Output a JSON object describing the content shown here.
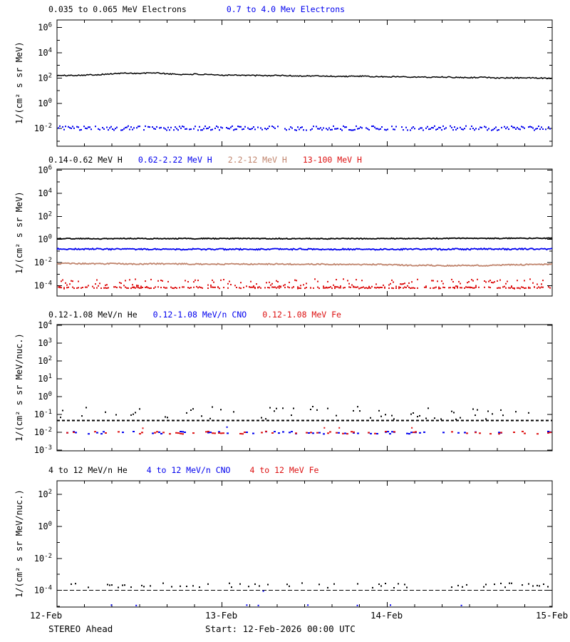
{
  "page": {
    "background": "#ffffff"
  },
  "x_axis": {
    "labels": [
      "12-Feb",
      "13-Feb",
      "14-Feb",
      "15-Feb"
    ],
    "minor_ticks_per_day": 6
  },
  "footer": {
    "left": "STEREO Ahead",
    "center": "Start: 12-Feb-2026 00:00 UTC"
  },
  "colors": {
    "black": "#000000",
    "blue": "#0000EE",
    "tan": "#C0846C",
    "red": "#DD1111"
  },
  "chart_data": [
    {
      "type": "line+scatter",
      "title_segments": [
        {
          "label": "0.035 to 0.065 MeV Electrons",
          "color": "#000000"
        },
        {
          "label": "0.7 to 4.0 Mev Electrons",
          "color": "#0000EE"
        }
      ],
      "ylabel": "1/(cm² s sr MeV)",
      "xlabel": "",
      "x_range_days": [
        0,
        3
      ],
      "ylog_range": [
        -3.4,
        6.6
      ],
      "yticks_labeled": [
        6,
        4,
        2,
        0,
        -2
      ],
      "yticks_minor": [
        5,
        3,
        1,
        -1,
        -3
      ],
      "series": [
        {
          "name": "0.035 to 0.065 MeV Electrons",
          "color": "#000000",
          "style": "noisy_line",
          "width": 1.5,
          "jitter": 0.045,
          "seed": 101,
          "log_values": [
            2.19,
            2.21,
            2.24,
            2.27,
            2.33,
            2.4,
            2.36,
            2.42,
            2.34,
            2.28,
            2.31,
            2.26,
            2.23,
            2.25,
            2.21,
            2.19,
            2.21,
            2.18,
            2.16,
            2.17,
            2.14,
            2.13,
            2.15,
            2.11,
            2.1,
            2.12,
            2.08,
            2.07,
            2.09,
            2.05,
            2.04,
            2.06,
            2.02,
            2.01,
            2.02,
            2.0,
            1.99
          ]
        },
        {
          "name": "0.7 to 4.0 Mev Electrons",
          "color": "#0000EE",
          "style": "scatter_band",
          "log_base": -1.97,
          "jitter": 0.17,
          "density": 0.8,
          "step": 2,
          "w": 2,
          "h": 2,
          "seed": 102
        }
      ]
    },
    {
      "type": "line+scatter",
      "title_segments": [
        {
          "label": "0.14-0.62 MeV H",
          "color": "#000000"
        },
        {
          "label": "0.62-2.22 MeV H",
          "color": "#0000EE"
        },
        {
          "label": "2.2-12 MeV H",
          "color": "#C0846C"
        },
        {
          "label": "13-100 MeV H",
          "color": "#DD1111"
        }
      ],
      "ylabel": "1/(cm² s sr MeV)",
      "xlabel": "",
      "x_range_days": [
        0,
        3
      ],
      "ylog_range": [
        -4.9,
        6.1
      ],
      "yticks_labeled": [
        6,
        4,
        2,
        0,
        -2,
        -4
      ],
      "yticks_minor": [
        5,
        3,
        1,
        -1,
        -3
      ],
      "series": [
        {
          "name": "0.14-0.62 MeV H",
          "color": "#000000",
          "style": "noisy_line",
          "width": 1.8,
          "jitter": 0.04,
          "seed": 201,
          "log_values": [
            0.08,
            0.07,
            0.08,
            0.06,
            0.07,
            0.09,
            0.08,
            0.07,
            0.06,
            0.08,
            0.07,
            0.08,
            0.07,
            0.09,
            0.08,
            0.07,
            0.08,
            0.07,
            0.08,
            0.06,
            0.07,
            0.08,
            0.07,
            0.08,
            0.09,
            0.08,
            0.07,
            0.08,
            0.09,
            0.1,
            0.09,
            0.1,
            0.09,
            0.11,
            0.1,
            0.11,
            0.1
          ]
        },
        {
          "name": "0.62-2.22 MeV H",
          "color": "#0000EE",
          "style": "noisy_line",
          "width": 1.8,
          "jitter": 0.06,
          "seed": 202,
          "log_values": [
            -0.82,
            -0.83,
            -0.84,
            -0.82,
            -0.85,
            -0.83,
            -0.86,
            -0.84,
            -0.83,
            -0.85,
            -0.84,
            -0.86,
            -0.85,
            -0.84,
            -0.86,
            -0.85,
            -0.84,
            -0.85,
            -0.83,
            -0.86,
            -0.85,
            -0.84,
            -0.85,
            -0.86,
            -0.84,
            -0.85,
            -0.83,
            -0.84,
            -0.85,
            -0.83,
            -0.84,
            -0.82,
            -0.83,
            -0.84,
            -0.82,
            -0.83,
            -0.82
          ]
        },
        {
          "name": "2.2-12 MeV H",
          "color": "#C0846C",
          "style": "noisy_line",
          "width": 1.8,
          "jitter": 0.05,
          "seed": 203,
          "log_values": [
            -2.1,
            -2.08,
            -2.1,
            -2.12,
            -2.1,
            -2.11,
            -2.13,
            -2.1,
            -2.12,
            -2.11,
            -2.13,
            -2.12,
            -2.14,
            -2.12,
            -2.13,
            -2.15,
            -2.13,
            -2.14,
            -2.16,
            -2.14,
            -2.15,
            -2.17,
            -2.18,
            -2.16,
            -2.18,
            -2.22,
            -2.26,
            -2.24,
            -2.28,
            -2.26,
            -2.24,
            -2.26,
            -2.22,
            -2.2,
            -2.18,
            -2.16,
            -2.15
          ]
        },
        {
          "name": "13-100 MeV H",
          "color": "#DD1111",
          "style": "scatter_band",
          "log_base": -3.85,
          "jitter": 0.42,
          "density": 0.5,
          "step": 2,
          "w": 2,
          "h": 2,
          "seed": 204
        },
        {
          "name": "13-100 MeV H",
          "color": "#DD1111",
          "style": "scatter_band",
          "log_base": -4.17,
          "jitter": 0.06,
          "density": 0.6,
          "step": 2,
          "w": 2,
          "h": 2,
          "seed": 205
        }
      ]
    },
    {
      "type": "scatter",
      "title_segments": [
        {
          "label": "0.12-1.08 MeV/n He",
          "color": "#000000"
        },
        {
          "label": "0.12-1.08 MeV/n CNO",
          "color": "#0000EE"
        },
        {
          "label": "0.12-1.08 MeV Fe",
          "color": "#DD1111"
        }
      ],
      "ylabel": "1/(cm² s sr MeV/nuc.)",
      "xlabel": "",
      "x_range_days": [
        0,
        3
      ],
      "ylog_range": [
        -3.05,
        4.05
      ],
      "yticks_labeled": [
        4,
        3,
        2,
        1,
        0,
        -1,
        -2,
        -3
      ],
      "yticks_minor": [],
      "series": [
        {
          "name": "0.12-1.08 MeV/n He",
          "color": "#000000",
          "style": "dash_hline",
          "log_value": -1.34,
          "dash": [
            4,
            3
          ],
          "width": 2
        },
        {
          "name": "0.12-1.08 MeV/n He",
          "color": "#000000",
          "style": "scatter_band",
          "log_base": -0.92,
          "jitter": 0.36,
          "density": 0.3,
          "step": 3,
          "w": 2,
          "h": 2,
          "seed": 302
        },
        {
          "name": "0.12-1.08 MeV/n CNO",
          "color": "#0000EE",
          "style": "scatter_band",
          "log_base": -2.03,
          "jitter": 0.07,
          "density": 0.25,
          "step": 3,
          "w": 3,
          "h": 2,
          "seed": 303
        },
        {
          "name": "0.12-1.08 MeV Fe",
          "color": "#DD1111",
          "style": "scatter_band",
          "log_base": -2.03,
          "jitter": 0.07,
          "density": 0.22,
          "step": 3,
          "w": 3,
          "h": 2,
          "seed": 304
        },
        {
          "name": "0.12-1.08 MeV Fe",
          "color": "#DD1111",
          "style": "points",
          "w": 2,
          "h": 2,
          "points": [
            [
              0.52,
              -1.78
            ],
            [
              1.62,
              -1.76
            ],
            [
              1.71,
              -1.76
            ],
            [
              2.15,
              -1.76
            ]
          ]
        },
        {
          "name": "0.12-1.08 MeV/n CNO",
          "color": "#0000EE",
          "style": "points",
          "w": 2,
          "h": 2,
          "points": [
            [
              1.03,
              -1.72
            ]
          ]
        }
      ]
    },
    {
      "type": "scatter",
      "title_segments": [
        {
          "label": "4 to 12 MeV/n He",
          "color": "#000000"
        },
        {
          "label": "4 to 12 MeV/n CNO",
          "color": "#0000EE"
        },
        {
          "label": "4 to 12 MeV Fe",
          "color": "#DD1111"
        }
      ],
      "ylabel": "1/(cm² s sr MeV/nuc.)",
      "xlabel": "",
      "x_range_days": [
        0,
        3
      ],
      "ylog_range": [
        -5.05,
        2.86
      ],
      "yticks_labeled": [
        2,
        0,
        -2,
        -4
      ],
      "yticks_minor": [
        1,
        -1,
        -3,
        -5
      ],
      "series": [
        {
          "name": "4 to 12 MeV/n He",
          "color": "#000000",
          "style": "dash_hline",
          "log_value": -4.0,
          "dash": [
            6,
            3
          ],
          "width": 1.4
        },
        {
          "name": "4 to 12 MeV/n He",
          "color": "#000000",
          "style": "scatter_band",
          "log_base": -3.7,
          "jitter": 0.15,
          "density": 0.25,
          "step": 3,
          "w": 2,
          "h": 2,
          "seed": 402
        },
        {
          "name": "4 to 12 MeV/n CNO",
          "color": "#0000EE",
          "style": "points",
          "w": 2,
          "h": 2,
          "points": [
            [
              0.33,
              -4.93
            ],
            [
              0.48,
              -4.95
            ],
            [
              1.15,
              -4.93
            ],
            [
              1.22,
              -4.95
            ],
            [
              1.25,
              -4.05
            ],
            [
              1.52,
              -4.93
            ],
            [
              1.82,
              -4.95
            ],
            [
              2.02,
              -4.93
            ],
            [
              2.45,
              -4.95
            ]
          ]
        },
        {
          "name": "4 to 12 MeV Fe",
          "color": "#DD1111",
          "style": "points",
          "w": 2,
          "h": 2,
          "points": []
        }
      ]
    }
  ]
}
